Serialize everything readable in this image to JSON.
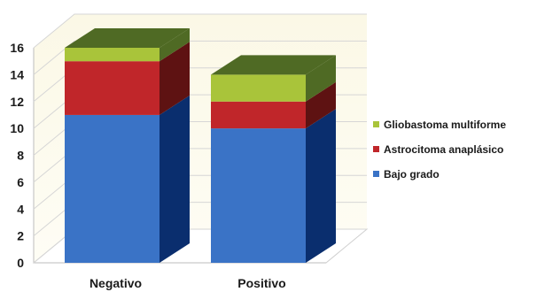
{
  "chart_data": {
    "type": "bar",
    "stacked": true,
    "style": "3d",
    "categories": [
      "Negativo",
      "Positivo"
    ],
    "series": [
      {
        "name": "Bajo grado",
        "values": [
          11,
          10
        ],
        "color": "#3a73c6",
        "side_color": "#0a2e6e"
      },
      {
        "name": "Astrocitoma anaplásico",
        "values": [
          4,
          2
        ],
        "color": "#c0262a",
        "side_color": "#5e1212"
      },
      {
        "name": "Gliobastoma multiforme",
        "values": [
          1,
          2
        ],
        "color": "#a9c43a",
        "side_color": "#4f6a24"
      }
    ],
    "y_ticks": [
      "0",
      "2",
      "4",
      "6",
      "8",
      "10",
      "12",
      "14",
      "16"
    ],
    "ylim": [
      0,
      16
    ],
    "grid": true,
    "legend_position": "right",
    "title": "",
    "xlabel": "",
    "ylabel": ""
  }
}
